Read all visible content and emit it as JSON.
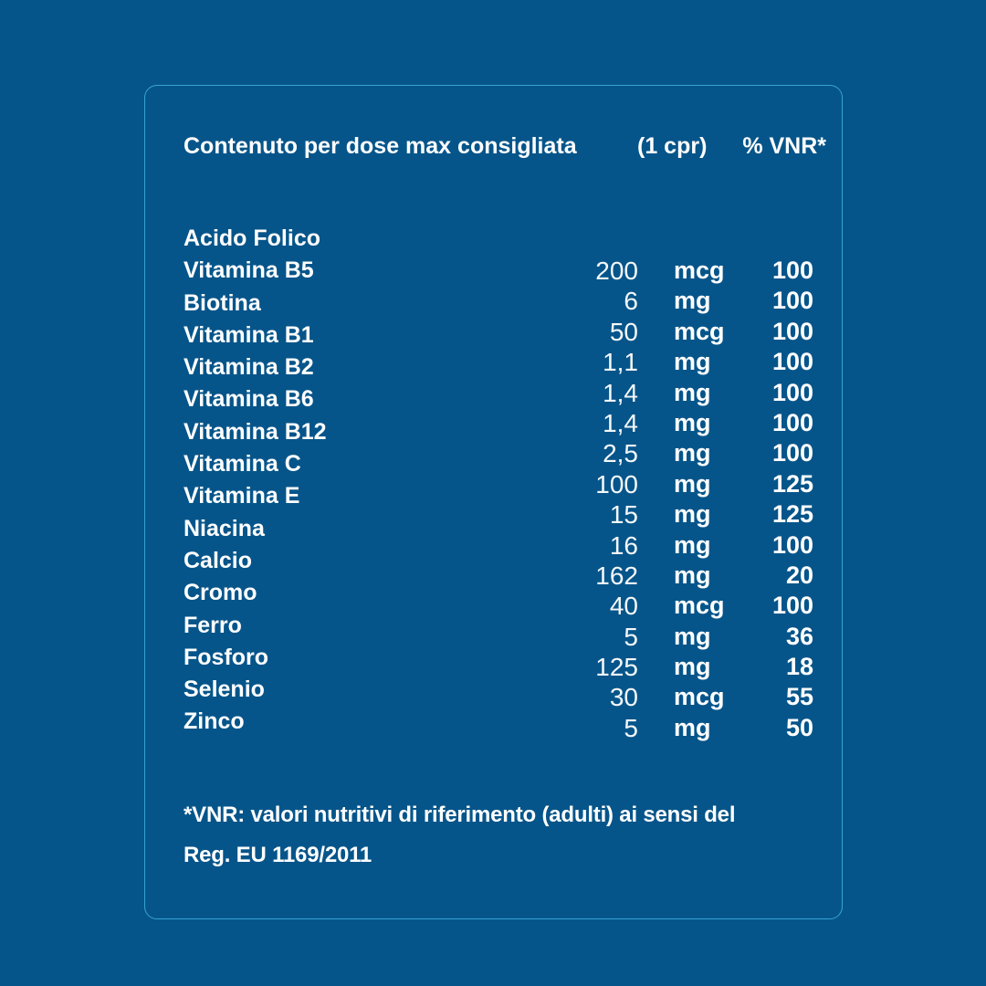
{
  "colors": {
    "background": "#06558A",
    "border": "#35A3D3",
    "text": "#FFFFFF"
  },
  "card": {
    "header": {
      "title": "Contenuto per dose max consigliata",
      "dose": "(1 cpr)",
      "vnr_header": "% VNR*"
    },
    "table": {
      "labels": [
        "Acido Folico",
        "Vitamina B5",
        "Biotina",
        "Vitamina B1",
        "Vitamina B2",
        "Vitamina B6",
        "Vitamina B12",
        "Vitamina C",
        "Vitamina E",
        "Niacina",
        "Calcio",
        "Cromo",
        "Ferro",
        "Fosforo",
        "Selenio",
        "Zinco"
      ],
      "values": [
        {
          "amount": "200",
          "unit": "mcg",
          "vnr": "100"
        },
        {
          "amount": "6",
          "unit": "mg",
          "vnr": "100"
        },
        {
          "amount": "50",
          "unit": "mcg",
          "vnr": "100"
        },
        {
          "amount": "1,1",
          "unit": "mg",
          "vnr": "100"
        },
        {
          "amount": "1,4",
          "unit": "mg",
          "vnr": "100"
        },
        {
          "amount": "1,4",
          "unit": "mg",
          "vnr": "100"
        },
        {
          "amount": "2,5",
          "unit": "mg",
          "vnr": "100"
        },
        {
          "amount": "100",
          "unit": "mg",
          "vnr": "125"
        },
        {
          "amount": "15",
          "unit": "mg",
          "vnr": "125"
        },
        {
          "amount": "16",
          "unit": "mg",
          "vnr": "100"
        },
        {
          "amount": "162",
          "unit": "mg",
          "vnr": "20"
        },
        {
          "amount": "40",
          "unit": "mcg",
          "vnr": "100"
        },
        {
          "amount": "5",
          "unit": "mg",
          "vnr": "36"
        },
        {
          "amount": "125",
          "unit": "mg",
          "vnr": "18"
        },
        {
          "amount": "30",
          "unit": "mcg",
          "vnr": "55"
        },
        {
          "amount": "5",
          "unit": "mg",
          "vnr": "50"
        }
      ]
    },
    "footnote": {
      "line1": "*VNR: valori nutritivi di riferimento (adulti) ai sensi del",
      "line2": "Reg. EU 1169/2011"
    }
  }
}
